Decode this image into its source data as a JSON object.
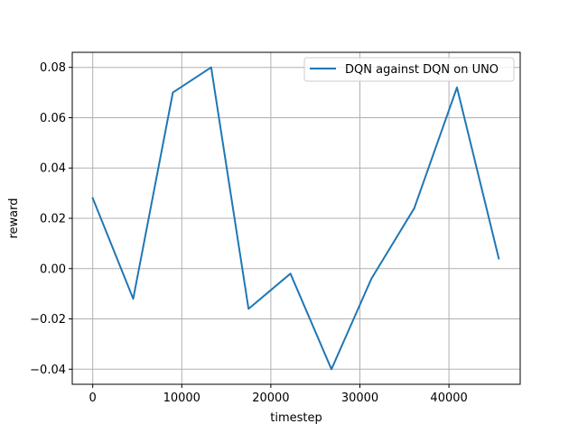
{
  "chart_data": {
    "type": "line",
    "title": "",
    "xlabel": "timestep",
    "ylabel": "reward",
    "xlim": [
      -2300,
      48000
    ],
    "ylim": [
      -0.046,
      0.086
    ],
    "x_ticks": [
      0,
      10000,
      20000,
      30000,
      40000
    ],
    "x_tick_labels": [
      "0",
      "10000",
      "20000",
      "30000",
      "40000"
    ],
    "y_ticks": [
      -0.04,
      -0.02,
      0.0,
      0.02,
      0.04,
      0.06,
      0.08
    ],
    "y_tick_labels": [
      "−0.04",
      "−0.02",
      "0.00",
      "0.02",
      "0.04",
      "0.06",
      "0.08"
    ],
    "grid": true,
    "legend_position": "top-right",
    "series": [
      {
        "name": "DQN against DQN on UNO",
        "color": "#1f77b4",
        "x": [
          0,
          4550,
          9000,
          13300,
          17500,
          22200,
          26800,
          31300,
          36100,
          40900,
          45600
        ],
        "y": [
          0.028,
          -0.012,
          0.07,
          0.08,
          -0.016,
          -0.002,
          -0.04,
          -0.004,
          0.024,
          0.072,
          0.004
        ]
      }
    ]
  }
}
